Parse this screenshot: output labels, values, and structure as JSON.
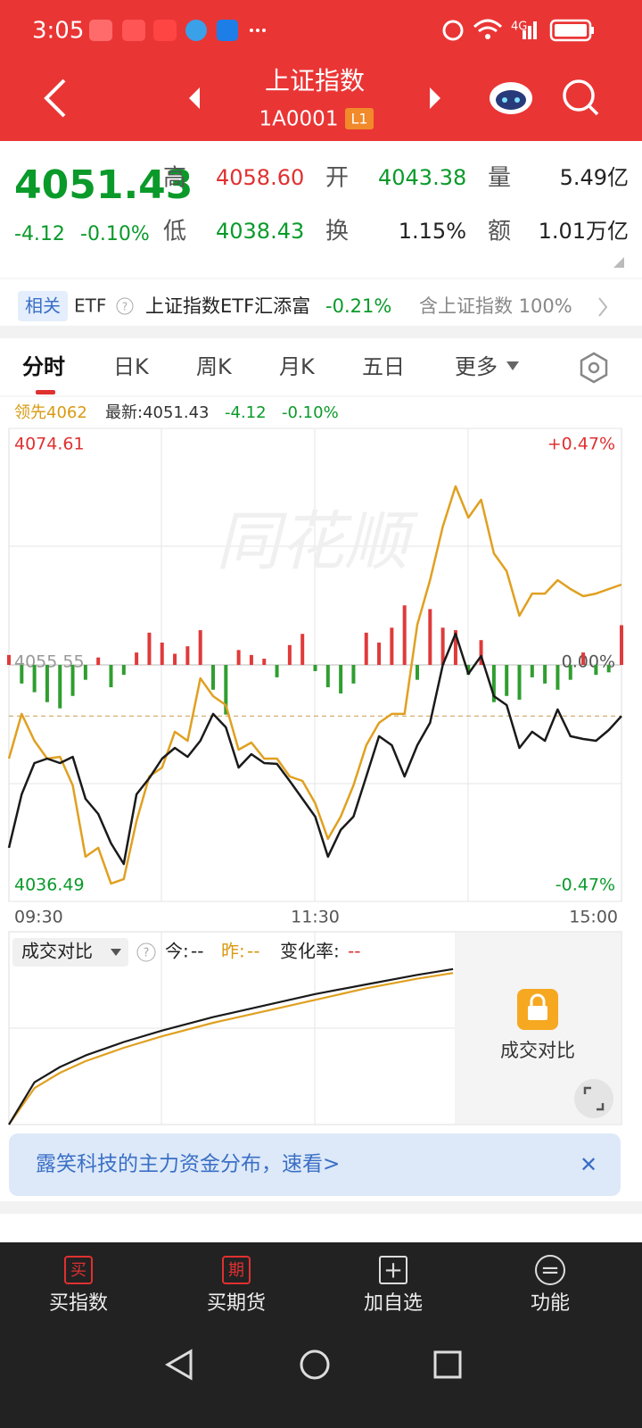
{
  "status_bar": {
    "time": "3:05",
    "network": "4G"
  },
  "header": {
    "title": "上证指数",
    "code": "1A0001",
    "level": "L1"
  },
  "quote": {
    "price": "4051.43",
    "change": "-4.12",
    "change_pct": "-0.10%",
    "fields": [
      {
        "label": "高",
        "value": "4058.60",
        "color": "#e03030"
      },
      {
        "label": "开",
        "value": "4043.38",
        "color": "#0a9a2a"
      },
      {
        "label": "量",
        "value": "5.49亿",
        "color": "#222222"
      },
      {
        "label": "低",
        "value": "4038.43",
        "color": "#0a9a2a"
      },
      {
        "label": "换",
        "value": "1.15%",
        "color": "#222222"
      },
      {
        "label": "额",
        "value": "1.01万亿",
        "color": "#222222"
      }
    ]
  },
  "etf": {
    "tag": "相关",
    "label": "ETF",
    "help": "?",
    "name": "上证指数ETF汇添富",
    "change": "-0.21%",
    "note": "含上证指数 100%"
  },
  "tabs": [
    "分时",
    "日K",
    "周K",
    "月K",
    "五日",
    "更多"
  ],
  "legend": {
    "lead": "领先4062",
    "latest": "最新:4051.43",
    "change": "-4.12",
    "pct": "-0.10%"
  },
  "chart": {
    "type": "line",
    "watermark": "同花顺",
    "xlim": [
      0,
      240
    ],
    "xticks": [
      {
        "value": 0,
        "label": "09:30"
      },
      {
        "value": 120,
        "label": "11:30"
      },
      {
        "value": 240,
        "label": "15:00"
      }
    ],
    "ylim": [
      4036.49,
      4074.61
    ],
    "yticks": [
      4074.61,
      4055.55,
      4036.49
    ],
    "y2lim": [
      -0.47,
      0.47
    ],
    "y2ticks": [
      {
        "value": 0.47,
        "label": "+0.47%"
      },
      {
        "value": 0,
        "label": "0.00%"
      },
      {
        "value": -0.47,
        "label": "-0.47%"
      }
    ],
    "ref_line": 4051.43,
    "x": [
      0,
      5,
      10,
      15,
      20,
      25,
      30,
      35,
      40,
      45,
      50,
      55,
      60,
      65,
      70,
      75,
      80,
      85,
      90,
      95,
      100,
      105,
      110,
      115,
      120,
      125,
      130,
      135,
      140,
      145,
      150,
      155,
      160,
      165,
      170,
      175,
      180,
      185,
      190,
      195,
      200,
      205,
      210,
      215,
      220,
      225,
      230,
      235,
      240
    ],
    "series": [
      {
        "color": "#1a1a1a",
        "values": [
          4040.81,
          4045.12,
          4047.64,
          4048.0,
          4047.64,
          4048.14,
          4044.76,
          4043.54,
          4041.17,
          4039.51,
          4045.12,
          4046.42,
          4048.0,
          4048.86,
          4048.14,
          4049.44,
          4051.6,
          4050.52,
          4047.28,
          4048.36,
          4047.64,
          4047.57,
          4046.2,
          4044.76,
          4043.32,
          4040.09,
          4042.25,
          4043.32,
          4046.56,
          4049.8,
          4049.08,
          4046.56,
          4049.08,
          4050.88,
          4055.55,
          4058.07,
          4054.83,
          4056.27,
          4053.03,
          4052.31,
          4048.86,
          4050.16,
          4049.44,
          4051.96,
          4049.8,
          4049.58,
          4049.44,
          4050.3,
          4051.43
        ]
      },
      {
        "name": "领先",
        "color": "#e0a020",
        "values": [
          4048.0,
          4051.6,
          4049.44,
          4048.0,
          4048.14,
          4045.84,
          4040.09,
          4040.81,
          4037.93,
          4038.29,
          4042.97,
          4046.56,
          4047.28,
          4050.16,
          4049.44,
          4054.47,
          4053.03,
          4052.31,
          4048.72,
          4049.29,
          4048.0,
          4048.0,
          4046.56,
          4046.2,
          4044.4,
          4041.53,
          4043.32,
          4045.84,
          4049.08,
          4050.88,
          4051.6,
          4051.6,
          4058.79,
          4062.38,
          4066.7,
          4069.94,
          4067.42,
          4068.86,
          4064.54,
          4063.1,
          4059.51,
          4061.3,
          4061.3,
          4062.38,
          4061.66,
          4061.09,
          4061.3,
          4061.66,
          4062.02
        ]
      }
    ],
    "bars": {
      "up_color": "#e03a3a",
      "down_color": "#2f9e2f",
      "values": [
        0.8,
        -1.5,
        -2.2,
        -3.0,
        -3.5,
        -2.5,
        -1.2,
        0.6,
        -1.8,
        -0.8,
        1.0,
        2.6,
        1.8,
        0.9,
        1.5,
        2.8,
        -2.0,
        -4.0,
        1.2,
        0.8,
        0.5,
        -1.0,
        1.6,
        2.5,
        -0.5,
        -1.8,
        -2.3,
        -1.5,
        2.6,
        1.8,
        3.0,
        4.8,
        -1.2,
        4.5,
        3.0,
        2.8,
        -0.8,
        2.0,
        -3.0,
        -2.5,
        -2.8,
        -1.0,
        -1.5,
        -2.0,
        -1.2,
        1.0,
        -0.8,
        -0.6,
        3.2
      ]
    }
  },
  "volume_compare": {
    "type": "line",
    "title": "成交对比",
    "help": "?",
    "today_label": "今:",
    "today_value": "--",
    "yesterday_label": "昨:",
    "yesterday_value": "--",
    "rate_label": "变化率:",
    "rate_value": "--",
    "lock_text": "成交对比",
    "xlim": [
      0,
      240
    ],
    "ylim": [
      0,
      100
    ],
    "x": [
      0,
      10,
      20,
      30,
      45,
      60,
      80,
      100,
      120,
      140,
      160,
      174
    ],
    "series": [
      {
        "color": "#1a1a1a",
        "values": [
          0,
          22,
          30,
          36,
          43,
          49,
          56,
          62,
          68,
          73,
          78,
          81
        ]
      },
      {
        "color": "#e0a020",
        "values": [
          0,
          19,
          27,
          33,
          40,
          46,
          53,
          59,
          65,
          71,
          76,
          79
        ]
      }
    ]
  },
  "banner": {
    "text": "露笑科技的主力资金分布，速看>",
    "close": "✕"
  },
  "nav": [
    {
      "icon": "买",
      "label": "买指数"
    },
    {
      "icon": "期",
      "label": "买期货"
    },
    {
      "icon": "+",
      "label": "加自选"
    },
    {
      "icon": "=",
      "label": "功能"
    }
  ]
}
